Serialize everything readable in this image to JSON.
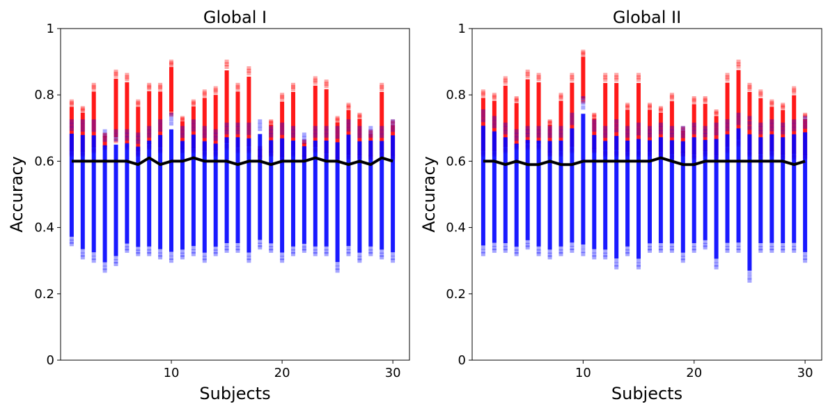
{
  "chart_data": [
    {
      "type": "scatter",
      "title": "Global I",
      "xlabel": "Subjects",
      "ylabel": "Accuracy",
      "xlim": [
        0,
        31.5
      ],
      "ylim": [
        0,
        1
      ],
      "xticks": [
        10,
        20,
        30
      ],
      "yticks": [
        0,
        0.2,
        0.4,
        0.6,
        0.8,
        1
      ],
      "ytick_labels": [
        "0",
        "0.2",
        "0.4",
        "0.6",
        "0.8",
        "1"
      ],
      "x": [
        1,
        2,
        3,
        4,
        5,
        6,
        7,
        8,
        9,
        10,
        11,
        12,
        13,
        14,
        15,
        16,
        17,
        18,
        19,
        20,
        21,
        22,
        23,
        24,
        25,
        26,
        27,
        28,
        29,
        30
      ],
      "series": [
        {
          "color": "#ff0000",
          "marker": "square",
          "low": [
            0.62,
            0.62,
            0.63,
            0.64,
            0.66,
            0.64,
            0.62,
            0.64,
            0.63,
            0.74,
            0.63,
            0.63,
            0.62,
            0.62,
            0.64,
            0.63,
            0.63,
            0.61,
            0.62,
            0.6,
            0.62,
            0.61,
            0.63,
            0.61,
            0.6,
            0.61,
            0.61,
            0.61,
            0.62,
            0.61
          ],
          "high": [
            0.78,
            0.76,
            0.83,
            0.68,
            0.87,
            0.86,
            0.78,
            0.83,
            0.83,
            0.9,
            0.73,
            0.78,
            0.81,
            0.82,
            0.9,
            0.83,
            0.88,
            0.64,
            0.72,
            0.8,
            0.83,
            0.66,
            0.85,
            0.84,
            0.73,
            0.77,
            0.74,
            0.69,
            0.83,
            0.72
          ]
        },
        {
          "color": "#0000ff",
          "marker": "square",
          "low": [
            0.35,
            0.31,
            0.3,
            0.27,
            0.29,
            0.33,
            0.32,
            0.32,
            0.31,
            0.3,
            0.31,
            0.32,
            0.3,
            0.32,
            0.33,
            0.33,
            0.3,
            0.34,
            0.33,
            0.3,
            0.32,
            0.33,
            0.32,
            0.32,
            0.27,
            0.32,
            0.3,
            0.32,
            0.31,
            0.3
          ],
          "high": [
            0.72,
            0.72,
            0.72,
            0.69,
            0.69,
            0.69,
            0.68,
            0.7,
            0.72,
            0.74,
            0.7,
            0.72,
            0.7,
            0.69,
            0.71,
            0.71,
            0.71,
            0.72,
            0.7,
            0.71,
            0.7,
            0.68,
            0.7,
            0.7,
            0.7,
            0.72,
            0.7,
            0.7,
            0.7,
            0.72
          ]
        },
        {
          "color": "#000000",
          "type": "line",
          "values": [
            0.6,
            0.6,
            0.6,
            0.6,
            0.6,
            0.6,
            0.59,
            0.61,
            0.59,
            0.6,
            0.6,
            0.61,
            0.6,
            0.6,
            0.6,
            0.59,
            0.6,
            0.6,
            0.59,
            0.6,
            0.6,
            0.6,
            0.61,
            0.6,
            0.6,
            0.59,
            0.6,
            0.59,
            0.61,
            0.6
          ]
        }
      ]
    },
    {
      "type": "scatter",
      "title": "Global II",
      "xlabel": "Subjects",
      "ylabel": "Accuracy",
      "xlim": [
        0,
        31.5
      ],
      "ylim": [
        0,
        1
      ],
      "xticks": [
        10,
        20,
        30
      ],
      "yticks": [
        0,
        0.2,
        0.4,
        0.6,
        0.8,
        1
      ],
      "ytick_labels": [
        "0",
        "0.2",
        "0.4",
        "0.6",
        "0.8",
        "1"
      ],
      "x": [
        1,
        2,
        3,
        4,
        5,
        6,
        7,
        8,
        9,
        10,
        11,
        12,
        13,
        14,
        15,
        16,
        17,
        18,
        19,
        20,
        21,
        22,
        23,
        24,
        25,
        26,
        27,
        28,
        29,
        30
      ],
      "series": [
        {
          "color": "#ff0000",
          "marker": "square",
          "low": [
            0.62,
            0.62,
            0.63,
            0.64,
            0.64,
            0.64,
            0.62,
            0.62,
            0.63,
            0.78,
            0.63,
            0.62,
            0.62,
            0.62,
            0.62,
            0.62,
            0.62,
            0.61,
            0.62,
            0.61,
            0.62,
            0.61,
            0.63,
            0.65,
            0.62,
            0.61,
            0.62,
            0.61,
            0.61,
            0.61
          ],
          "high": [
            0.81,
            0.8,
            0.85,
            0.79,
            0.87,
            0.86,
            0.72,
            0.8,
            0.86,
            0.93,
            0.74,
            0.86,
            0.86,
            0.77,
            0.86,
            0.77,
            0.76,
            0.8,
            0.7,
            0.79,
            0.79,
            0.75,
            0.86,
            0.9,
            0.83,
            0.81,
            0.78,
            0.77,
            0.82,
            0.74
          ]
        },
        {
          "color": "#0000ff",
          "marker": "square",
          "low": [
            0.32,
            0.33,
            0.33,
            0.32,
            0.34,
            0.32,
            0.31,
            0.32,
            0.33,
            0.32,
            0.31,
            0.31,
            0.28,
            0.32,
            0.28,
            0.33,
            0.33,
            0.33,
            0.3,
            0.33,
            0.34,
            0.28,
            0.33,
            0.33,
            0.24,
            0.33,
            0.33,
            0.33,
            0.33,
            0.3
          ],
          "high": [
            0.75,
            0.73,
            0.71,
            0.69,
            0.7,
            0.7,
            0.7,
            0.7,
            0.74,
            0.79,
            0.72,
            0.7,
            0.72,
            0.7,
            0.71,
            0.7,
            0.71,
            0.7,
            0.7,
            0.71,
            0.7,
            0.71,
            0.72,
            0.74,
            0.73,
            0.71,
            0.72,
            0.71,
            0.72,
            0.73
          ]
        },
        {
          "color": "#000000",
          "type": "line",
          "values": [
            0.6,
            0.6,
            0.59,
            0.6,
            0.59,
            0.59,
            0.6,
            0.59,
            0.59,
            0.6,
            0.6,
            0.6,
            0.6,
            0.6,
            0.6,
            0.6,
            0.61,
            0.6,
            0.59,
            0.59,
            0.6,
            0.6,
            0.6,
            0.6,
            0.6,
            0.6,
            0.6,
            0.6,
            0.59,
            0.6
          ]
        }
      ]
    }
  ]
}
